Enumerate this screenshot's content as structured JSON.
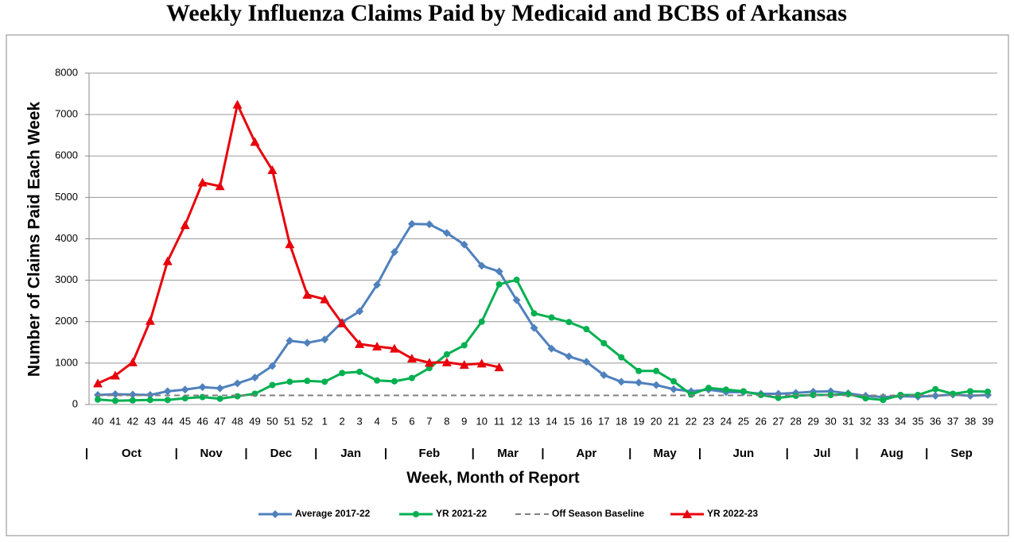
{
  "chart_data": {
    "type": "line",
    "title": "Weekly Influenza Claims Paid by Medicaid and BCBS of Arkansas",
    "ylabel": "Number of Claims Paid Each Week",
    "xlabel": "Week, Month of Report",
    "categories": [
      "40",
      "41",
      "42",
      "43",
      "44",
      "45",
      "46",
      "47",
      "48",
      "49",
      "50",
      "51",
      "52",
      "1",
      "2",
      "3",
      "4",
      "5",
      "6",
      "7",
      "8",
      "9",
      "10",
      "11",
      "12",
      "13",
      "14",
      "15",
      "16",
      "17",
      "18",
      "19",
      "20",
      "21",
      "22",
      "23",
      "24",
      "25",
      "26",
      "27",
      "28",
      "29",
      "30",
      "31",
      "32",
      "33",
      "34",
      "35",
      "36",
      "37",
      "38",
      "39"
    ],
    "x_groups": [
      {
        "label": "Oct",
        "span": 5
      },
      {
        "label": "Nov",
        "span": 4
      },
      {
        "label": "Dec",
        "span": 4
      },
      {
        "label": "Jan",
        "span": 4
      },
      {
        "label": "Feb",
        "span": 5
      },
      {
        "label": "Mar",
        "span": 4
      },
      {
        "label": "Apr",
        "span": 5
      },
      {
        "label": "May",
        "span": 4
      },
      {
        "label": "Jun",
        "span": 5
      },
      {
        "label": "Jul",
        "span": 4
      },
      {
        "label": "Aug",
        "span": 4
      },
      {
        "label": "Sep",
        "span": 4
      }
    ],
    "ylim": [
      0,
      8000
    ],
    "yticks": [
      0,
      1000,
      2000,
      3000,
      4000,
      5000,
      6000,
      7000,
      8000
    ],
    "grid": true,
    "legend": "bottom",
    "series": [
      {
        "name": "Average 2017-22",
        "color": "#4f81bd",
        "marker": "diamond",
        "values": [
          230,
          250,
          240,
          230,
          320,
          360,
          420,
          390,
          510,
          650,
          930,
          1540,
          1490,
          1570,
          1990,
          2250,
          2890,
          3680,
          4360,
          4350,
          4140,
          3860,
          3350,
          3210,
          2520,
          1850,
          1350,
          1160,
          1030,
          710,
          550,
          530,
          470,
          370,
          320,
          360,
          300,
          300,
          260,
          260,
          280,
          310,
          320,
          270,
          210,
          180,
          200,
          190,
          210,
          240,
          210,
          230
        ]
      },
      {
        "name": "YR 2021-22",
        "color": "#00b050",
        "marker": "circle",
        "values": [
          120,
          90,
          100,
          110,
          110,
          150,
          180,
          140,
          200,
          260,
          470,
          550,
          570,
          550,
          760,
          790,
          580,
          560,
          640,
          880,
          1210,
          1430,
          2000,
          2900,
          3010,
          2200,
          2100,
          1990,
          1820,
          1480,
          1140,
          810,
          810,
          560,
          240,
          400,
          360,
          320,
          230,
          160,
          210,
          230,
          230,
          250,
          150,
          110,
          230,
          230,
          370,
          260,
          320,
          310
        ]
      },
      {
        "name": "Off Season Baseline",
        "color": "#808080",
        "marker": "none",
        "dash": true,
        "values": [
          220,
          220,
          220,
          220,
          220,
          220,
          220,
          220,
          220,
          220,
          220,
          220,
          220,
          220,
          220,
          220,
          220,
          220,
          220,
          220,
          220,
          220,
          220,
          220,
          220,
          220,
          220,
          220,
          220,
          220,
          220,
          220,
          220,
          220,
          220,
          220,
          220,
          220,
          220,
          220,
          220,
          220,
          220,
          220,
          220,
          220,
          220,
          220,
          220,
          220,
          220,
          220
        ]
      },
      {
        "name": "YR 2022-23",
        "color": "#e8000b",
        "marker": "triangle",
        "values": [
          510,
          700,
          1020,
          2020,
          3460,
          4330,
          5360,
          5270,
          7240,
          6340,
          5660,
          3870,
          2650,
          2540,
          1960,
          1460,
          1400,
          1350,
          1110,
          1010,
          1020,
          960,
          990,
          900,
          null,
          null,
          null,
          null,
          null,
          null,
          null,
          null,
          null,
          null,
          null,
          null,
          null,
          null,
          null,
          null,
          null,
          null,
          null,
          null,
          null,
          null,
          null,
          null,
          null,
          null,
          null,
          null
        ]
      }
    ]
  }
}
